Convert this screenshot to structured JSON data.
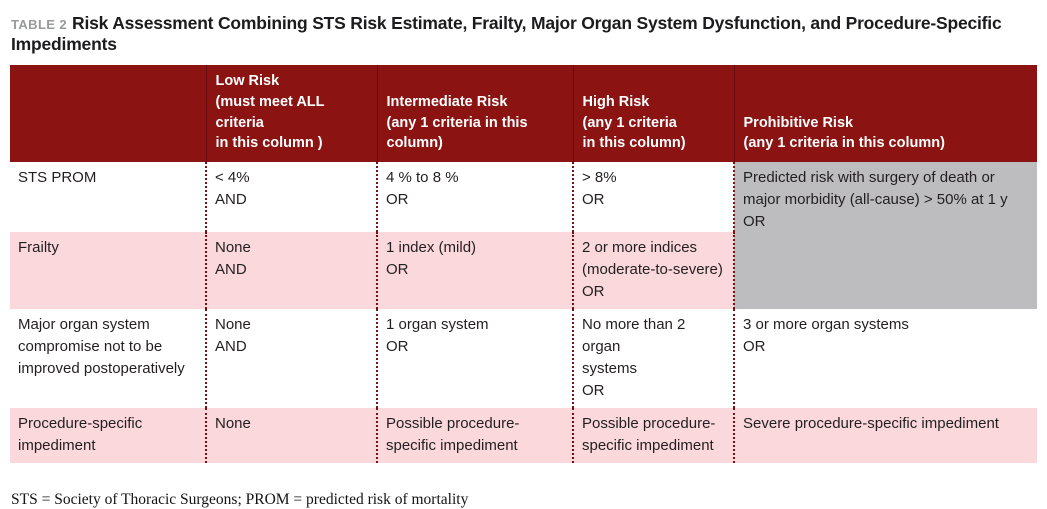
{
  "title": {
    "label": "TABLE 2",
    "text": "Risk Assessment Combining STS Risk Estimate, Frailty, Major Organ System Dysfunction, and Procedure-Specific Impediments"
  },
  "table": {
    "columns": [
      {
        "header": ""
      },
      {
        "header": "Low Risk\n(must meet ALL criteria\nin this column )"
      },
      {
        "header": "Intermediate Risk\n(any 1 criteria in this\ncolumn)"
      },
      {
        "header": "High Risk\n(any 1 criteria\nin this column)"
      },
      {
        "header": "Prohibitive Risk\n(any 1 criteria in this column)"
      }
    ],
    "rows": [
      {
        "label": "STS PROM",
        "low": "< 4%\nAND",
        "intermediate": "4 % to 8 %\nOR",
        "high": "> 8%\nOR",
        "prohibitive": "Predicted risk with surgery of death or\nmajor morbidity (all-cause) > 50% at 1 y\nOR"
      },
      {
        "label": "Frailty",
        "low": "None\nAND",
        "intermediate": "1 index (mild)\nOR",
        "high": "2 or more indices\n(moderate-to-severe)\nOR",
        "prohibitive": ""
      },
      {
        "label": "Major organ system\ncompromise not to be\nimproved postoperatively",
        "low": "None\nAND",
        "intermediate": "1 organ system\nOR",
        "high": "No more than 2 organ\nsystems\nOR",
        "prohibitive": "3 or more organ systems\nOR"
      },
      {
        "label": "Procedure-specific\nimpediment",
        "low": "None",
        "intermediate": "Possible procedure-\nspecific impediment",
        "high": "Possible procedure-\nspecific impediment",
        "prohibitive": "Severe procedure-specific impediment"
      }
    ]
  },
  "footnote": "STS = Society of Thoracic Surgeons; PROM = predicted risk of mortality",
  "colors": {
    "header_bg": "#8B1412",
    "header_text": "#FFFFFF",
    "pink_row": "#FAD8DB",
    "gray_cell": "#BDBDC0",
    "dotted_divider": "#7A1010",
    "title_label": "#97999B",
    "body_text": "#231F20"
  }
}
